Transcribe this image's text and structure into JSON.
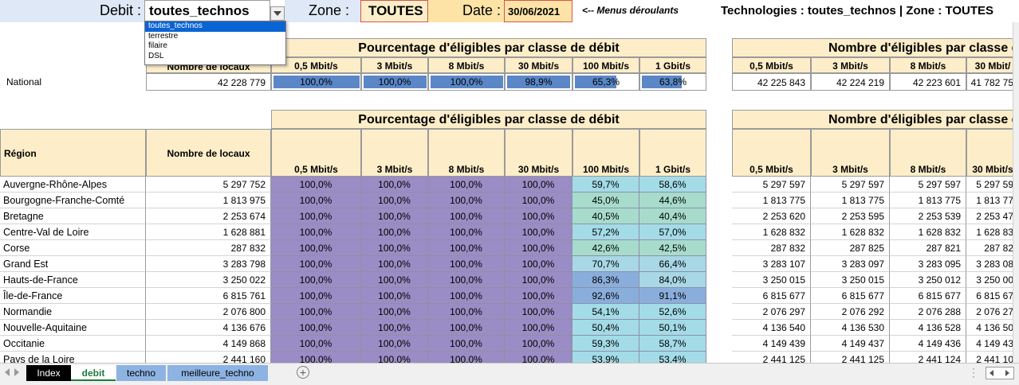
{
  "header": {
    "debit_label": "Debit :",
    "debit_value": "toutes_technos",
    "zone_label": "Zone :",
    "zone_value": "TOUTES",
    "date_label": "Date :",
    "date_value": "30/06/2021",
    "menus_hint": "<-- Menus déroulants",
    "tech_summary": "Technologies : toutes_technos | Zone : TOUTES"
  },
  "dropdown_options": [
    "toutes_technos",
    "terrestre",
    "filaire",
    "DSL"
  ],
  "national": {
    "pct_title": "Pourcentage d'éligibles par classe de débit",
    "nb_title": "Nombre d'éligibles par classe d",
    "nb_locaux_header": "Nombre de locaux",
    "classes": [
      "0,5 Mbit/s",
      "3 Mbit/s",
      "8 Mbit/s",
      "30 Mbit/s",
      "100 Mbit/s",
      "1 Gbit/s"
    ],
    "nb_classes": [
      "0,5 Mbit/s",
      "3 Mbit/s",
      "8 Mbit/s",
      "30 Mbit/"
    ],
    "row_label": "National",
    "locaux": "42 228 779",
    "pct": [
      "100,0%",
      "100,0%",
      "100,0%",
      "98,9%",
      "65,3%",
      "63,8%"
    ],
    "pct_fill": [
      1.0,
      1.0,
      1.0,
      0.989,
      0.653,
      0.638
    ],
    "nb": [
      "42 225 843",
      "42 224 219",
      "42 223 601",
      "41 782 75"
    ]
  },
  "regions": {
    "pct_title": "Pourcentage d'éligibles par classe de débit",
    "nb_title": "Nombre d'éligibles par classe d",
    "region_header": "Région",
    "nb_locaux_header": "Nombre de locaux",
    "classes": [
      "0,5 Mbit/s",
      "3 Mbit/s",
      "8 Mbit/s",
      "30 Mbit/s",
      "100 Mbit/s",
      "1 Gbit/s"
    ],
    "nb_classes": [
      "0,5 Mbit/s",
      "3 Mbit/s",
      "8 Mbit/s",
      "30 Mbit/s"
    ],
    "rows": [
      {
        "name": "Auvergne-Rhône-Alpes",
        "locaux": "5 297 752",
        "pct": [
          "100,0%",
          "100,0%",
          "100,0%",
          "100,0%",
          "59,7%",
          "58,6%"
        ],
        "nb": [
          "5 297 597",
          "5 297 597",
          "5 297 597",
          "5 297 59"
        ]
      },
      {
        "name": "Bourgogne-Franche-Comté",
        "locaux": "1 813 975",
        "pct": [
          "100,0%",
          "100,0%",
          "100,0%",
          "100,0%",
          "45,0%",
          "44,6%"
        ],
        "nb": [
          "1 813 775",
          "1 813 775",
          "1 813 775",
          "1 813 77"
        ]
      },
      {
        "name": "Bretagne",
        "locaux": "2 253 674",
        "pct": [
          "100,0%",
          "100,0%",
          "100,0%",
          "100,0%",
          "40,5%",
          "40,4%"
        ],
        "nb": [
          "2 253 620",
          "2 253 595",
          "2 253 539",
          "2 253 47"
        ]
      },
      {
        "name": "Centre-Val de Loire",
        "locaux": "1 628 881",
        "pct": [
          "100,0%",
          "100,0%",
          "100,0%",
          "100,0%",
          "57,2%",
          "57,0%"
        ],
        "nb": [
          "1 628 832",
          "1 628 832",
          "1 628 832",
          "1 628 83"
        ]
      },
      {
        "name": "Corse",
        "locaux": "287 832",
        "pct": [
          "100,0%",
          "100,0%",
          "100,0%",
          "100,0%",
          "42,6%",
          "42,5%"
        ],
        "nb": [
          "287 832",
          "287 825",
          "287 821",
          "287 82"
        ]
      },
      {
        "name": "Grand Est",
        "locaux": "3 283 798",
        "pct": [
          "100,0%",
          "100,0%",
          "100,0%",
          "100,0%",
          "70,7%",
          "66,4%"
        ],
        "nb": [
          "3 283 107",
          "3 283 097",
          "3 283 095",
          "3 283 08"
        ]
      },
      {
        "name": "Hauts-de-France",
        "locaux": "3 250 022",
        "pct": [
          "100,0%",
          "100,0%",
          "100,0%",
          "100,0%",
          "86,3%",
          "84,0%"
        ],
        "nb": [
          "3 250 015",
          "3 250 015",
          "3 250 012",
          "3 250 00"
        ]
      },
      {
        "name": "Île-de-France",
        "locaux": "6 815 761",
        "pct": [
          "100,0%",
          "100,0%",
          "100,0%",
          "100,0%",
          "92,6%",
          "91,1%"
        ],
        "nb": [
          "6 815 677",
          "6 815 677",
          "6 815 677",
          "6 815 67"
        ]
      },
      {
        "name": "Normandie",
        "locaux": "2 076 800",
        "pct": [
          "100,0%",
          "100,0%",
          "100,0%",
          "100,0%",
          "54,1%",
          "52,6%"
        ],
        "nb": [
          "2 076 297",
          "2 076 292",
          "2 076 288",
          "2 076 27"
        ]
      },
      {
        "name": "Nouvelle-Aquitaine",
        "locaux": "4 136 676",
        "pct": [
          "100,0%",
          "100,0%",
          "100,0%",
          "100,0%",
          "50,4%",
          "50,1%"
        ],
        "nb": [
          "4 136 540",
          "4 136 530",
          "4 136 528",
          "4 136 50"
        ]
      },
      {
        "name": "Occitanie",
        "locaux": "4 149 868",
        "pct": [
          "100,0%",
          "100,0%",
          "100,0%",
          "100,0%",
          "59,3%",
          "58,7%"
        ],
        "nb": [
          "4 149 439",
          "4 149 437",
          "4 149 436",
          "4 149 43"
        ]
      },
      {
        "name": "Pays de la Loire",
        "locaux": "2 441 160",
        "pct": [
          "100,0%",
          "100,0%",
          "100,0%",
          "100,0%",
          "53,9%",
          "53,4%"
        ],
        "nb": [
          "2 441 125",
          "2 441 125",
          "2 441 124",
          "2 441 10"
        ]
      }
    ]
  },
  "tabs": [
    {
      "label": "Index",
      "active": false,
      "color": "#000000",
      "text": "#ffffff"
    },
    {
      "label": "debit",
      "active": true,
      "color": "#ffffff",
      "text": "#1d7a3a"
    },
    {
      "label": "techno",
      "active": false,
      "color": "#8db3e2",
      "text": "#000000"
    },
    {
      "label": "meilleure_techno",
      "active": false,
      "color": "#8db3e2",
      "text": "#000000"
    }
  ],
  "colors": {
    "purple": "#9a8cc4",
    "bar_blue": "#5b87c7",
    "beige": "#fdeec9",
    "zone_value_bg": "#fdeec9",
    "date_bg": "#fde4a6",
    "header_blue": "#dce6f5"
  }
}
